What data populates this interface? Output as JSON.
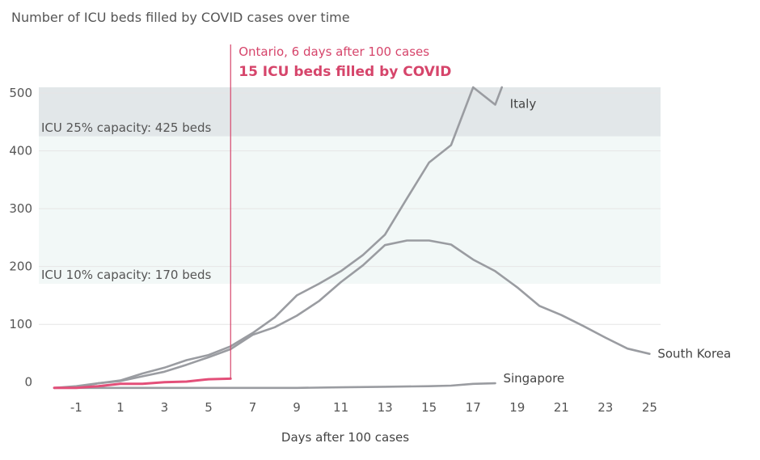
{
  "chart_data": {
    "type": "line",
    "title": "Number of ICU beds filled by COVID cases over time",
    "xlabel": "Days after 100 cases",
    "ylabel": "",
    "xlim": [
      -2.7,
      25.5
    ],
    "ylim": [
      -20,
      510
    ],
    "x_ticks": [
      -1,
      1,
      3,
      5,
      7,
      9,
      11,
      13,
      15,
      17,
      19,
      21,
      23,
      25
    ],
    "y_ticks": [
      0,
      100,
      200,
      300,
      400,
      500
    ],
    "bands": [
      {
        "label": "ICU 25% capacity: 425 beds",
        "from": 425,
        "to": 510,
        "color": "#e2e7e9"
      },
      {
        "label": "ICU 10% capacity: 170 beds",
        "from": 170,
        "to": 425,
        "color": "#f2f8f7"
      }
    ],
    "annotation": {
      "x": 6,
      "line1": "Ontario, 6 days after 100 cases",
      "line2": "15 ICU beds filled by COVID",
      "color": "#d6456b"
    },
    "series": [
      {
        "name": "Italy",
        "color": "#9a9ca1",
        "points": [
          [
            -2,
            -10
          ],
          [
            -1,
            -9
          ],
          [
            0,
            -2
          ],
          [
            1,
            3
          ],
          [
            2,
            15
          ],
          [
            3,
            25
          ],
          [
            4,
            38
          ],
          [
            5,
            47
          ],
          [
            6,
            62
          ],
          [
            7,
            85
          ],
          [
            8,
            112
          ],
          [
            9,
            150
          ],
          [
            10,
            170
          ],
          [
            11,
            192
          ],
          [
            12,
            220
          ],
          [
            13,
            255
          ],
          [
            14,
            318
          ],
          [
            15,
            380
          ],
          [
            16,
            410
          ],
          [
            17,
            510
          ],
          [
            18,
            480
          ],
          [
            18.3,
            510
          ]
        ]
      },
      {
        "name": "South Korea",
        "color": "#9a9ca1",
        "points": [
          [
            -2,
            -10
          ],
          [
            -1,
            -7
          ],
          [
            0,
            -2
          ],
          [
            1,
            2
          ],
          [
            2,
            10
          ],
          [
            3,
            18
          ],
          [
            4,
            30
          ],
          [
            5,
            43
          ],
          [
            6,
            57
          ],
          [
            7,
            82
          ],
          [
            8,
            95
          ],
          [
            9,
            115
          ],
          [
            10,
            140
          ],
          [
            11,
            173
          ],
          [
            12,
            202
          ],
          [
            13,
            237
          ],
          [
            14,
            245
          ],
          [
            15,
            245
          ],
          [
            16,
            238
          ],
          [
            17,
            212
          ],
          [
            18,
            192
          ],
          [
            19,
            164
          ],
          [
            20,
            132
          ],
          [
            21,
            116
          ],
          [
            22,
            97
          ],
          [
            23,
            77
          ],
          [
            24,
            58
          ],
          [
            25,
            49
          ]
        ]
      },
      {
        "name": "Singapore",
        "color": "#9a9ca1",
        "points": [
          [
            -2,
            -10
          ],
          [
            0,
            -10
          ],
          [
            2,
            -10
          ],
          [
            4,
            -10
          ],
          [
            6,
            -10
          ],
          [
            8,
            -10
          ],
          [
            9,
            -10
          ],
          [
            11,
            -9
          ],
          [
            13,
            -8
          ],
          [
            15,
            -7
          ],
          [
            16,
            -6
          ],
          [
            17,
            -3
          ],
          [
            18,
            -2
          ]
        ]
      },
      {
        "name": "",
        "color": "#e34f79",
        "points": [
          [
            -2,
            -10
          ],
          [
            -1,
            -10
          ],
          [
            0,
            -7
          ],
          [
            1,
            -3
          ],
          [
            2,
            -3
          ],
          [
            3,
            0
          ],
          [
            4,
            1
          ],
          [
            5,
            5
          ],
          [
            6,
            6
          ]
        ]
      }
    ]
  }
}
